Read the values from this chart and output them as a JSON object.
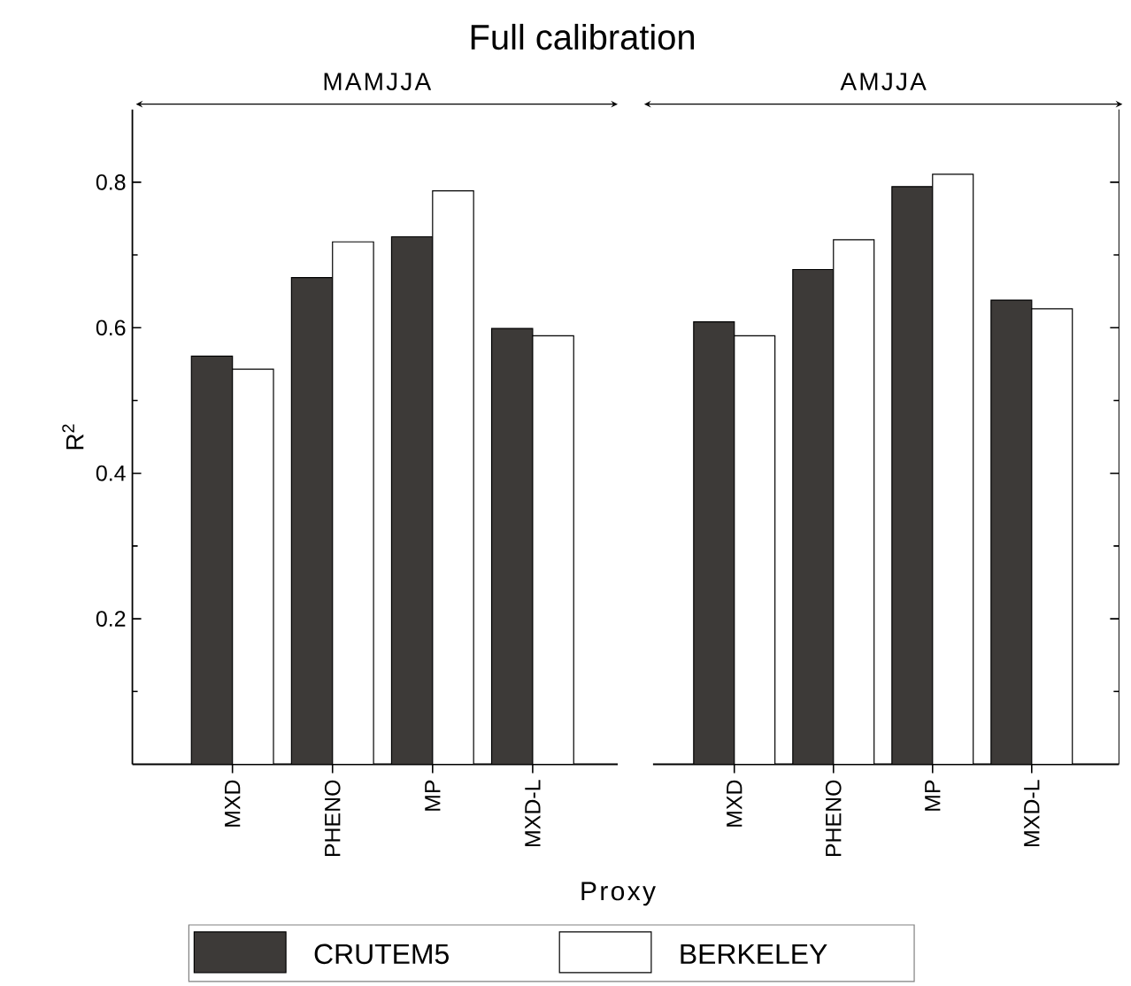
{
  "chart_data": [
    {
      "type": "bar",
      "title": "Full calibration",
      "xlabel": "Proxy",
      "ylabel": "R$^{2}$",
      "annotations": [
        "MAMJJA"
      ],
      "categories": [
        "MXD",
        "PHENO",
        "MP",
        "MXD-L"
      ],
      "series": [
        {
          "name": "CRUTEM5",
          "color": "#3d3a38",
          "values": [
            0.561,
            0.669,
            0.725,
            0.599
          ]
        },
        {
          "name": "BERKELEY",
          "color": "#ffffff",
          "values": [
            0.543,
            0.718,
            0.788,
            0.589
          ]
        }
      ],
      "ylim": [
        0,
        0.9
      ],
      "yticks": [
        {
          "value": 0.1,
          "label": null
        },
        0.2,
        {
          "value": 0.3,
          "label": null
        },
        0.4,
        {
          "value": 0.5,
          "label": null
        },
        0.6,
        {
          "value": 0.7,
          "label": null
        },
        0.8
      ],
      "legend": "bottom"
    },
    {
      "type": "bar",
      "annotations": [
        "AMJJA"
      ],
      "categories": [
        "MXD",
        "PHENO",
        "MP",
        "MXD-L"
      ],
      "series": [
        {
          "color": "#3d3a38",
          "values": [
            0.608,
            0.68,
            0.794,
            0.638
          ]
        },
        {
          "color": "#ffffff",
          "values": [
            0.589,
            0.721,
            0.811,
            0.626
          ]
        }
      ],
      "ylim": [
        0,
        0.9
      ],
      "yticks": [
        {
          "value": 0.1,
          "label": null
        },
        0.2,
        {
          "value": 0.3,
          "label": null
        },
        0.4,
        {
          "value": 0.5,
          "label": null
        },
        0.6,
        {
          "value": 0.7,
          "label": null
        },
        0.8
      ],
      "tick_labels": "x"
    }
  ]
}
